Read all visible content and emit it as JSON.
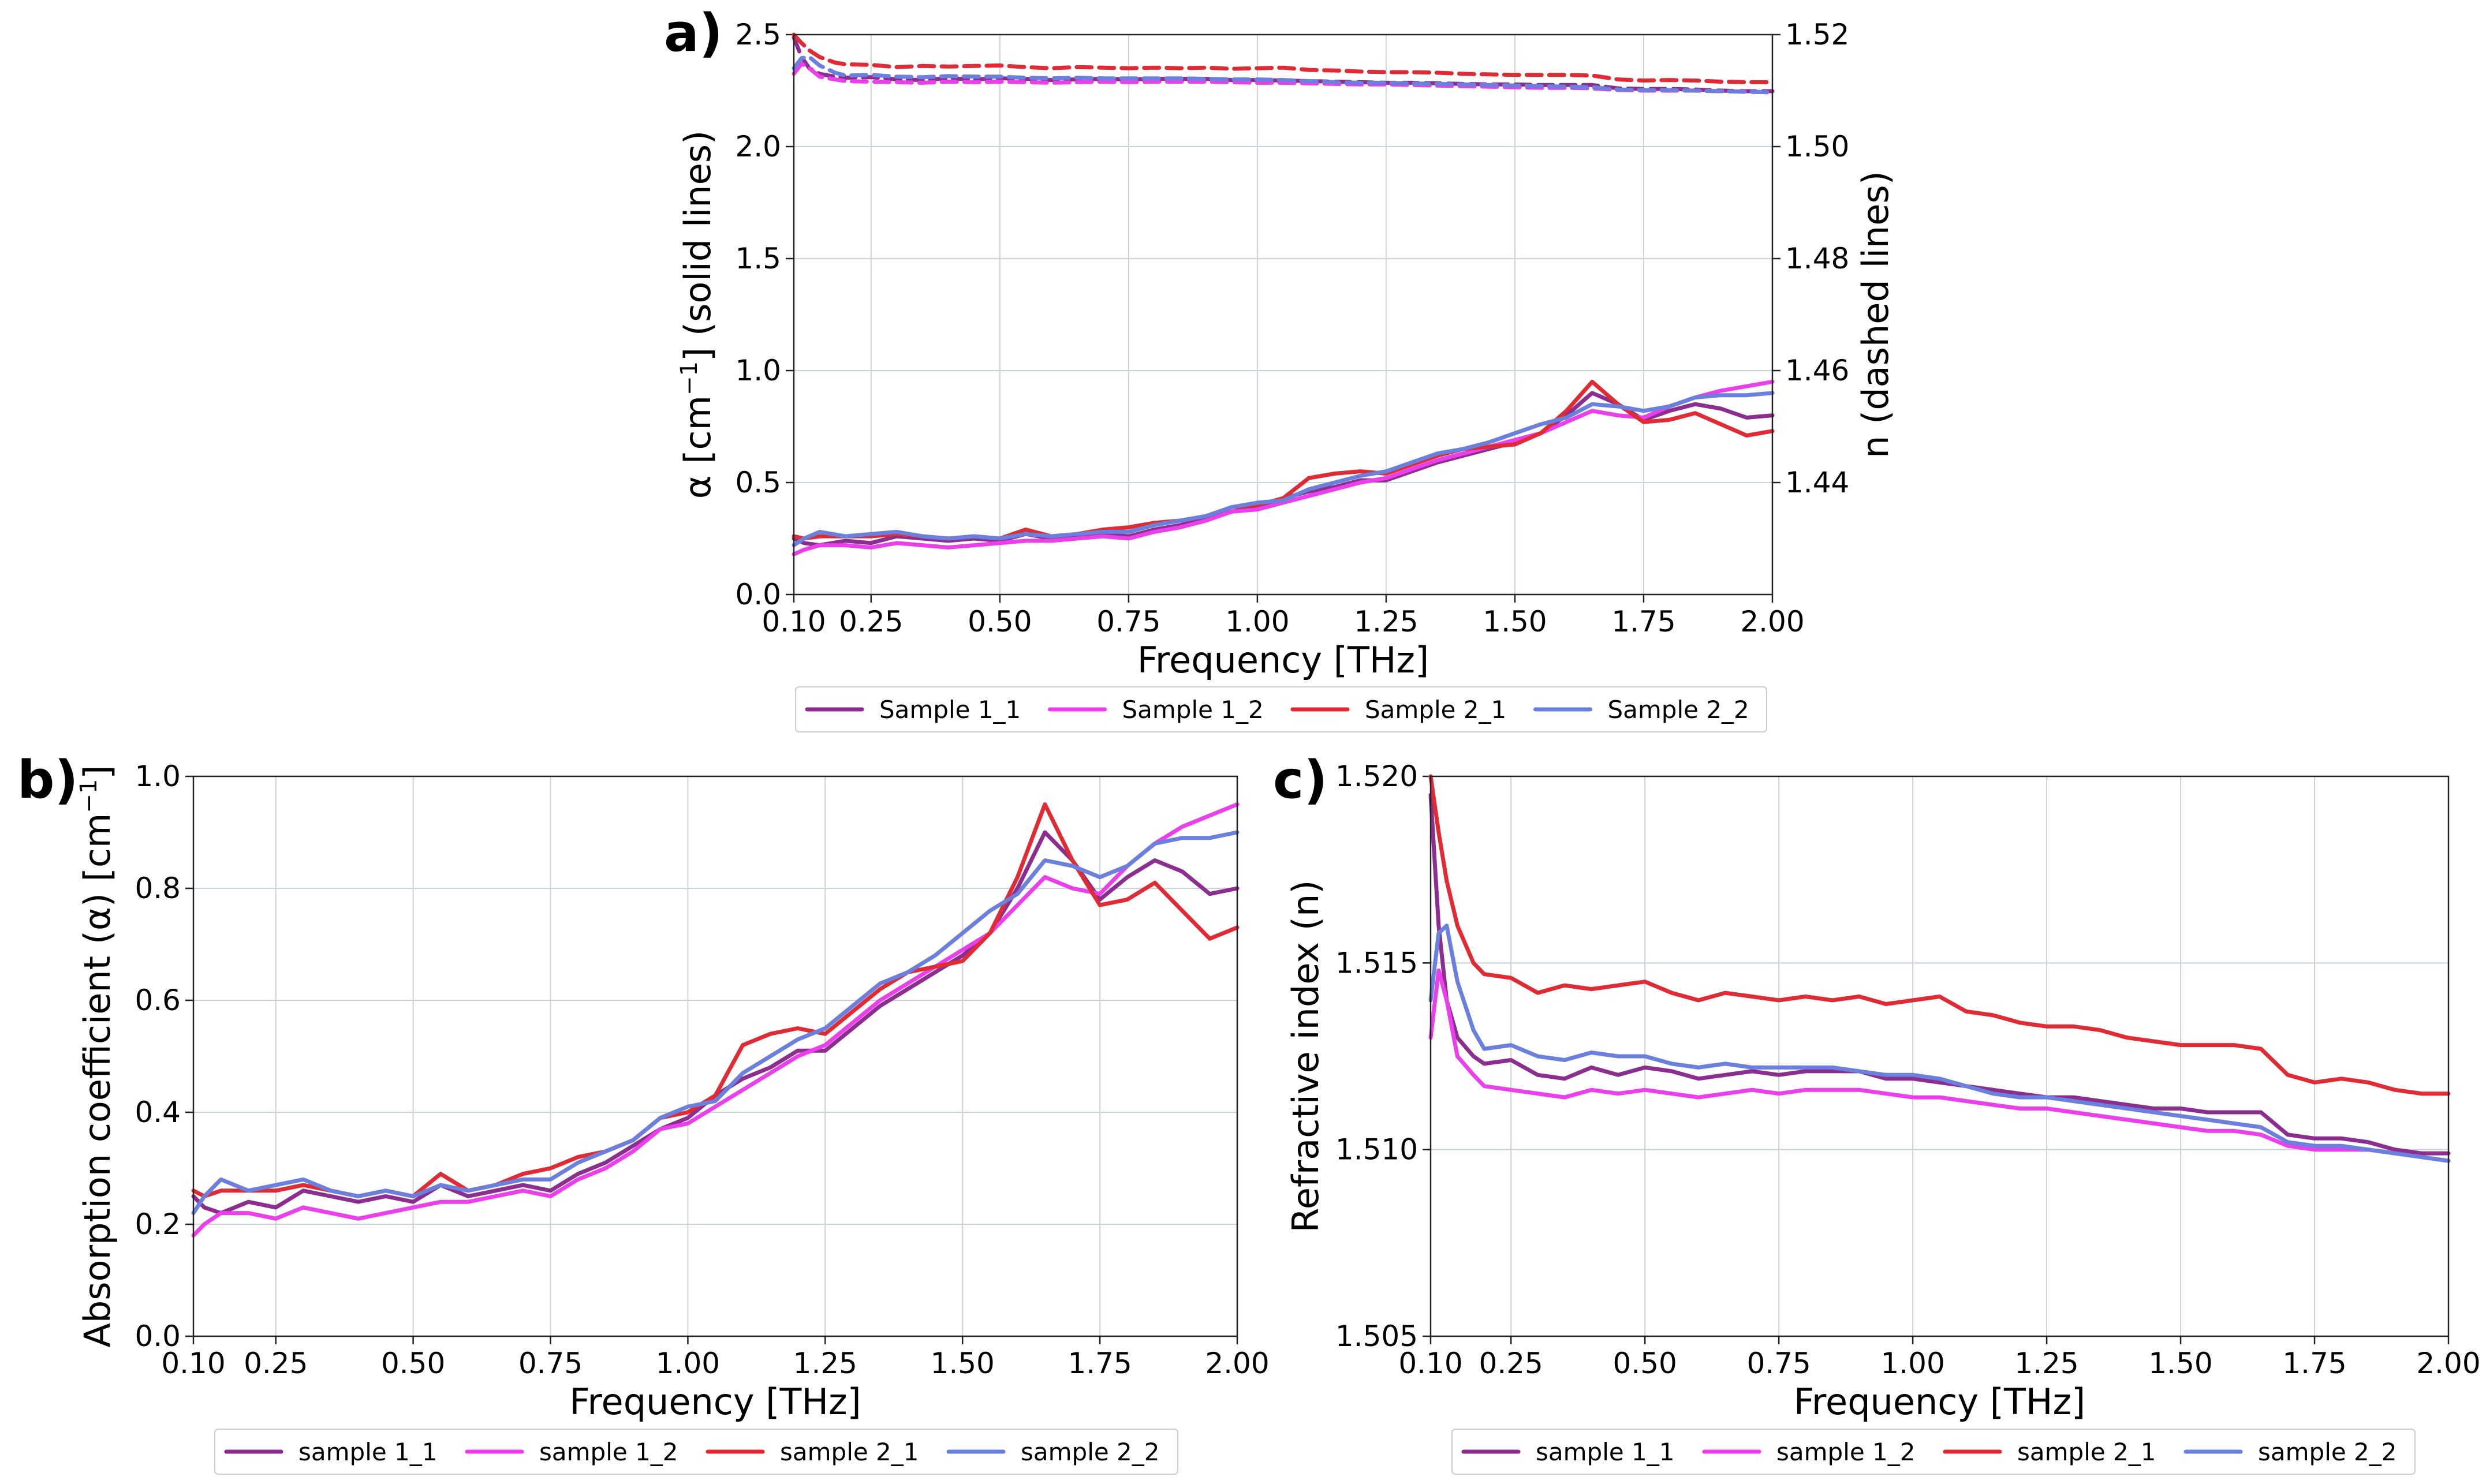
{
  "colors": {
    "sample_1_1": "#8b2e8f",
    "sample_1_2": "#ea3fea",
    "sample_2_1": "#e02b35",
    "sample_2_2": "#6b7fdc"
  },
  "chart_data": [
    {
      "id": "a",
      "type": "line",
      "panel_label": "a)",
      "xlabel": "Frequency [THz]",
      "ylabel_html": "α [cm<tspan baseline-shift=\"super\" font-size=\"40px\">−1</tspan>] (solid lines)",
      "ylabel": "α [cm−1] (solid lines)",
      "y2label": "n (dashed lines)",
      "xlim": [
        0.1,
        2.0
      ],
      "ylim": [
        0.0,
        2.5
      ],
      "y2lim": [
        1.42,
        1.52
      ],
      "xticks": [
        "0.10",
        "0.25",
        "0.50",
        "0.75",
        "1.00",
        "1.25",
        "1.50",
        "1.75",
        "2.00"
      ],
      "yticks": [
        "0.0",
        "0.5",
        "1.0",
        "1.5",
        "2.0",
        "2.5"
      ],
      "y2ticks": [
        "1.44",
        "1.46",
        "1.48",
        "1.50",
        "1.52"
      ],
      "grid": true,
      "legend_position": "below",
      "legend": [
        "Sample 1_1",
        "Sample 1_2",
        "Sample 2_1",
        "Sample 2_2"
      ],
      "alpha_ref": "b",
      "n_ref": "c"
    },
    {
      "id": "b",
      "type": "line",
      "panel_label": "b)",
      "xlabel": "Frequency [THz]",
      "ylabel": "Absorption coefficient (α) [cm−1]",
      "xlim": [
        0.1,
        2.0
      ],
      "ylim": [
        0.0,
        1.0
      ],
      "xticks": [
        "0.10",
        "0.25",
        "0.50",
        "0.75",
        "1.00",
        "1.25",
        "1.50",
        "1.75",
        "2.00"
      ],
      "yticks": [
        "0.0",
        "0.2",
        "0.4",
        "0.6",
        "0.8",
        "1.0"
      ],
      "grid": true,
      "legend_position": "below",
      "legend": [
        "sample 1_1",
        "sample 1_2",
        "sample 2_1",
        "sample 2_2"
      ],
      "x": [
        0.1,
        0.12,
        0.15,
        0.2,
        0.25,
        0.3,
        0.35,
        0.4,
        0.45,
        0.5,
        0.55,
        0.6,
        0.65,
        0.7,
        0.75,
        0.8,
        0.85,
        0.9,
        0.95,
        1.0,
        1.05,
        1.1,
        1.15,
        1.2,
        1.25,
        1.3,
        1.35,
        1.4,
        1.45,
        1.5,
        1.55,
        1.6,
        1.65,
        1.7,
        1.75,
        1.8,
        1.85,
        1.9,
        1.95,
        2.0
      ],
      "series": [
        {
          "name": "sample 1_1",
          "color_key": "sample_1_1",
          "values": [
            0.25,
            0.23,
            0.22,
            0.24,
            0.23,
            0.26,
            0.25,
            0.24,
            0.25,
            0.24,
            0.27,
            0.25,
            0.26,
            0.27,
            0.26,
            0.29,
            0.31,
            0.34,
            0.37,
            0.39,
            0.43,
            0.46,
            0.48,
            0.51,
            0.51,
            0.55,
            0.59,
            0.62,
            0.65,
            0.68,
            0.72,
            0.8,
            0.9,
            0.85,
            0.78,
            0.82,
            0.85,
            0.83,
            0.79,
            0.8
          ]
        },
        {
          "name": "sample 1_2",
          "color_key": "sample_1_2",
          "values": [
            0.18,
            0.2,
            0.22,
            0.22,
            0.21,
            0.23,
            0.22,
            0.21,
            0.22,
            0.23,
            0.24,
            0.24,
            0.25,
            0.26,
            0.25,
            0.28,
            0.3,
            0.33,
            0.37,
            0.38,
            0.41,
            0.44,
            0.47,
            0.5,
            0.52,
            0.56,
            0.6,
            0.63,
            0.66,
            0.69,
            0.72,
            0.77,
            0.82,
            0.8,
            0.79,
            0.84,
            0.88,
            0.91,
            0.93,
            0.95
          ]
        },
        {
          "name": "sample 2_1",
          "color_key": "sample_2_1",
          "values": [
            0.26,
            0.25,
            0.26,
            0.26,
            0.26,
            0.27,
            0.26,
            0.25,
            0.26,
            0.25,
            0.29,
            0.26,
            0.27,
            0.29,
            0.3,
            0.32,
            0.33,
            0.35,
            0.39,
            0.4,
            0.43,
            0.52,
            0.54,
            0.55,
            0.54,
            0.58,
            0.62,
            0.65,
            0.66,
            0.67,
            0.72,
            0.82,
            0.95,
            0.85,
            0.77,
            0.78,
            0.81,
            0.76,
            0.71,
            0.73
          ]
        },
        {
          "name": "sample 2_2",
          "color_key": "sample_2_2",
          "values": [
            0.22,
            0.25,
            0.28,
            0.26,
            0.27,
            0.28,
            0.26,
            0.25,
            0.26,
            0.25,
            0.27,
            0.26,
            0.27,
            0.28,
            0.28,
            0.31,
            0.33,
            0.35,
            0.39,
            0.41,
            0.42,
            0.47,
            0.5,
            0.53,
            0.55,
            0.59,
            0.63,
            0.65,
            0.68,
            0.72,
            0.76,
            0.79,
            0.85,
            0.84,
            0.82,
            0.84,
            0.88,
            0.89,
            0.89,
            0.9
          ]
        }
      ]
    },
    {
      "id": "c",
      "type": "line",
      "panel_label": "c)",
      "xlabel": "Frequency [THz]",
      "ylabel": "Refractive index (n)",
      "xlim": [
        0.1,
        2.0
      ],
      "ylim": [
        1.505,
        1.52
      ],
      "xticks": [
        "0.10",
        "0.25",
        "0.50",
        "0.75",
        "1.00",
        "1.25",
        "1.50",
        "1.75",
        "2.00"
      ],
      "yticks": [
        "1.505",
        "1.510",
        "1.515",
        "1.520"
      ],
      "grid": true,
      "legend_position": "below",
      "legend": [
        "sample 1_1",
        "sample 1_2",
        "sample 2_1",
        "sample 2_2"
      ],
      "x": [
        0.1,
        0.115,
        0.13,
        0.15,
        0.18,
        0.2,
        0.25,
        0.3,
        0.35,
        0.4,
        0.45,
        0.5,
        0.55,
        0.6,
        0.65,
        0.7,
        0.75,
        0.8,
        0.85,
        0.9,
        0.95,
        1.0,
        1.05,
        1.1,
        1.15,
        1.2,
        1.25,
        1.3,
        1.35,
        1.4,
        1.45,
        1.5,
        1.55,
        1.6,
        1.65,
        1.7,
        1.75,
        1.8,
        1.85,
        1.9,
        1.95,
        2.0
      ],
      "series": [
        {
          "name": "sample 1_1",
          "color_key": "sample_1_1",
          "values": [
            1.5195,
            1.516,
            1.514,
            1.513,
            1.5125,
            1.5123,
            1.5124,
            1.512,
            1.5119,
            1.5122,
            1.512,
            1.5122,
            1.5121,
            1.5119,
            1.512,
            1.5121,
            1.512,
            1.5121,
            1.5121,
            1.5121,
            1.5119,
            1.5119,
            1.5118,
            1.5117,
            1.5116,
            1.5115,
            1.5114,
            1.5114,
            1.5113,
            1.5112,
            1.5111,
            1.5111,
            1.511,
            1.511,
            1.511,
            1.5104,
            1.5103,
            1.5103,
            1.5102,
            1.51,
            1.5099,
            1.5099
          ]
        },
        {
          "name": "sample 1_2",
          "color_key": "sample_1_2",
          "values": [
            1.513,
            1.5148,
            1.514,
            1.5125,
            1.512,
            1.5117,
            1.5116,
            1.5115,
            1.5114,
            1.5116,
            1.5115,
            1.5116,
            1.5115,
            1.5114,
            1.5115,
            1.5116,
            1.5115,
            1.5116,
            1.5116,
            1.5116,
            1.5115,
            1.5114,
            1.5114,
            1.5113,
            1.5112,
            1.5111,
            1.5111,
            1.511,
            1.5109,
            1.5108,
            1.5107,
            1.5106,
            1.5105,
            1.5105,
            1.5104,
            1.5101,
            1.51,
            1.51,
            1.51,
            1.5099,
            1.5098,
            1.5097
          ]
        },
        {
          "name": "sample 2_1",
          "color_key": "sample_2_1",
          "values": [
            1.52,
            1.5185,
            1.5172,
            1.516,
            1.515,
            1.5147,
            1.5146,
            1.5142,
            1.5144,
            1.5143,
            1.5144,
            1.5145,
            1.5142,
            1.514,
            1.5142,
            1.5141,
            1.514,
            1.5141,
            1.514,
            1.5141,
            1.5139,
            1.514,
            1.5141,
            1.5137,
            1.5136,
            1.5134,
            1.5133,
            1.5133,
            1.5132,
            1.513,
            1.5129,
            1.5128,
            1.5128,
            1.5128,
            1.5127,
            1.512,
            1.5118,
            1.5119,
            1.5118,
            1.5116,
            1.5115,
            1.5115
          ]
        },
        {
          "name": "sample 2_2",
          "color_key": "sample_2_2",
          "values": [
            1.514,
            1.5158,
            1.516,
            1.5145,
            1.5132,
            1.5127,
            1.5128,
            1.5125,
            1.5124,
            1.5126,
            1.5125,
            1.5125,
            1.5123,
            1.5122,
            1.5123,
            1.5122,
            1.5122,
            1.5122,
            1.5122,
            1.5121,
            1.512,
            1.512,
            1.5119,
            1.5117,
            1.5115,
            1.5114,
            1.5114,
            1.5113,
            1.5112,
            1.5111,
            1.511,
            1.5109,
            1.5108,
            1.5107,
            1.5106,
            1.5102,
            1.5101,
            1.5101,
            1.51,
            1.5099,
            1.5098,
            1.5097
          ]
        }
      ]
    }
  ]
}
